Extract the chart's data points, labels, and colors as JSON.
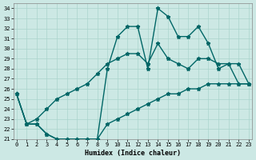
{
  "xlabel": "Humidex (Indice chaleur)",
  "bg_color": "#cce8e4",
  "grid_color": "#aad4cc",
  "line_color": "#006666",
  "line_width": 1.0,
  "marker": "*",
  "marker_size": 3.5,
  "xlim": [
    0,
    23
  ],
  "ylim": [
    21,
    34.5
  ],
  "xticks": [
    0,
    1,
    2,
    3,
    4,
    5,
    6,
    7,
    8,
    9,
    10,
    11,
    12,
    13,
    14,
    15,
    16,
    17,
    18,
    19,
    20,
    21,
    22,
    23
  ],
  "yticks": [
    21,
    22,
    23,
    24,
    25,
    26,
    27,
    28,
    29,
    30,
    31,
    32,
    33,
    34
  ],
  "curve1_x": [
    0,
    1,
    2,
    3,
    4,
    5,
    6,
    7,
    8,
    9,
    10,
    11,
    12,
    13,
    14,
    15,
    16,
    17,
    18,
    19,
    20,
    21,
    22,
    23
  ],
  "curve1_y": [
    25.5,
    22.5,
    22.5,
    21.5,
    21.0,
    21.0,
    21.0,
    21.0,
    21.0,
    28.0,
    31.2,
    32.2,
    32.2,
    28.0,
    34.0,
    33.2,
    31.2,
    31.2,
    32.2,
    30.5,
    28.0,
    28.5,
    26.5,
    26.5
  ],
  "curve2_x": [
    0,
    1,
    2,
    3,
    4,
    5,
    6,
    7,
    8,
    9,
    10,
    11,
    12,
    13,
    14,
    15,
    16,
    17,
    18,
    19,
    20,
    21,
    22,
    23
  ],
  "curve2_y": [
    25.5,
    22.5,
    23.0,
    24.0,
    25.0,
    25.5,
    26.0,
    26.5,
    27.5,
    28.5,
    29.0,
    29.5,
    29.5,
    28.5,
    30.5,
    29.0,
    28.5,
    28.0,
    29.0,
    29.0,
    28.5,
    28.5,
    28.5,
    26.5
  ],
  "curve3_x": [
    0,
    1,
    2,
    3,
    4,
    5,
    6,
    7,
    8,
    9,
    10,
    11,
    12,
    13,
    14,
    15,
    16,
    17,
    18,
    19,
    20,
    21,
    22,
    23
  ],
  "curve3_y": [
    25.5,
    22.5,
    22.5,
    21.5,
    21.0,
    21.0,
    21.0,
    21.0,
    21.0,
    22.5,
    23.0,
    23.5,
    24.0,
    24.5,
    25.0,
    25.5,
    25.5,
    26.0,
    26.0,
    26.5,
    26.5,
    26.5,
    26.5,
    26.5
  ]
}
